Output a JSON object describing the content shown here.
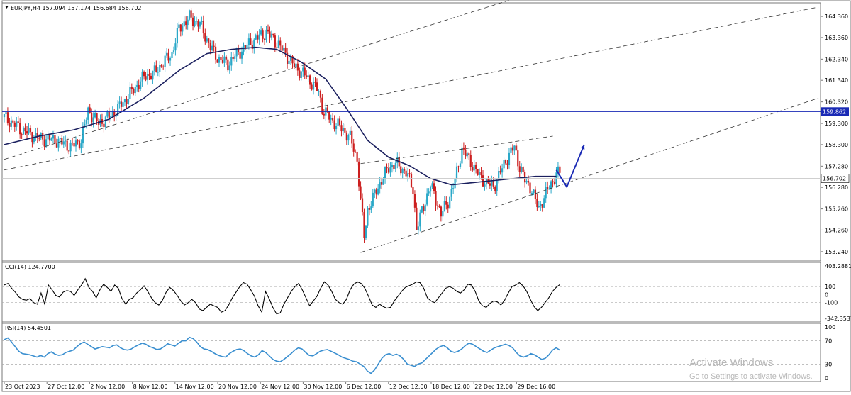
{
  "header": {
    "symbol": "EURJPY,H4",
    "ohlc": "157.094 157.174 156.684 156.702"
  },
  "chart_data": [
    {
      "type": "candlestick",
      "title": "EURJPY,H4",
      "y_ticks": [
        "164.360",
        "163.360",
        "162.340",
        "161.340",
        "160.320",
        "159.300",
        "158.300",
        "157.280",
        "156.280",
        "155.260",
        "154.260",
        "153.240"
      ],
      "ylim": [
        152.8,
        165.0
      ],
      "x_ticks": [
        "23 Oct 2023",
        "27 Oct 12:00",
        "2 Nov 12:00",
        "8 Nov 12:00",
        "14 Nov 12:00",
        "20 Nov 12:00",
        "24 Nov 12:00",
        "30 Nov 12:00",
        "6 Dec 12:00",
        "12 Dec 12:00",
        "18 Dec 12:00",
        "22 Dec 12:00",
        "29 Dec 16:00"
      ],
      "close_path": [
        [
          0,
          159.6
        ],
        [
          5,
          159.0
        ],
        [
          10,
          158.6
        ],
        [
          15,
          158.5
        ],
        [
          19,
          158.2
        ],
        [
          22,
          158.5
        ],
        [
          24,
          159.9
        ],
        [
          27,
          159.3
        ],
        [
          29,
          159.5
        ],
        [
          32,
          159.9
        ],
        [
          34,
          160.3
        ],
        [
          37,
          160.9
        ],
        [
          40,
          161.5
        ],
        [
          43,
          161.7
        ],
        [
          45,
          162.1
        ],
        [
          48,
          162.6
        ],
        [
          50,
          163.8
        ],
        [
          53,
          164.3
        ],
        [
          56,
          164.0
        ],
        [
          59,
          162.9
        ],
        [
          61,
          162.4
        ],
        [
          64,
          162.1
        ],
        [
          66,
          162.5
        ],
        [
          69,
          162.9
        ],
        [
          72,
          163.3
        ],
        [
          75,
          163.6
        ],
        [
          77,
          163.3
        ],
        [
          80,
          162.7
        ],
        [
          83,
          162.0
        ],
        [
          86,
          161.6
        ],
        [
          88,
          161.2
        ],
        [
          90,
          160.8
        ],
        [
          91,
          160.0
        ],
        [
          94,
          159.4
        ],
        [
          97,
          159.0
        ],
        [
          99,
          158.6
        ],
        [
          101,
          157.6
        ],
        [
          102,
          155.6
        ],
        [
          103,
          154.0
        ],
        [
          104,
          155.2
        ],
        [
          107,
          156.3
        ],
        [
          110,
          157.2
        ],
        [
          112,
          157.4
        ],
        [
          115,
          157.0
        ],
        [
          117,
          156.2
        ],
        [
          118,
          154.3
        ],
        [
          120,
          155.4
        ],
        [
          122,
          156.4
        ],
        [
          124,
          155.5
        ],
        [
          125,
          155.0
        ],
        [
          127,
          155.6
        ],
        [
          129,
          156.6
        ],
        [
          131,
          158.1
        ],
        [
          133,
          157.6
        ],
        [
          136,
          156.8
        ],
        [
          138,
          156.5
        ],
        [
          140,
          156.3
        ],
        [
          142,
          157.0
        ],
        [
          144,
          157.7
        ],
        [
          146,
          158.2
        ],
        [
          147,
          157.5
        ],
        [
          149,
          156.6
        ],
        [
          151,
          156.2
        ],
        [
          152,
          155.6
        ],
        [
          153,
          155.3
        ],
        [
          155,
          156.0
        ],
        [
          158,
          156.9
        ],
        [
          159,
          157.0
        ]
      ],
      "moving_average": [
        [
          0,
          158.3
        ],
        [
          10,
          158.7
        ],
        [
          20,
          159.0
        ],
        [
          30,
          159.5
        ],
        [
          40,
          160.5
        ],
        [
          50,
          161.8
        ],
        [
          58,
          162.6
        ],
        [
          65,
          162.8
        ],
        [
          72,
          162.9
        ],
        [
          78,
          162.8
        ],
        [
          85,
          162.2
        ],
        [
          92,
          161.4
        ],
        [
          98,
          160.0
        ],
        [
          104,
          158.5
        ],
        [
          110,
          157.7
        ],
        [
          116,
          157.3
        ],
        [
          122,
          156.7
        ],
        [
          128,
          156.4
        ],
        [
          134,
          156.5
        ],
        [
          140,
          156.6
        ],
        [
          146,
          156.7
        ],
        [
          152,
          156.8
        ],
        [
          158,
          156.8
        ]
      ],
      "horizontal_level": {
        "value": 159.862,
        "label": "159.862"
      },
      "current_price_label": "156.702",
      "channel_lines": [
        {
          "from": [
            0,
            157.6
          ],
          "to": [
            146,
            165.2
          ]
        },
        {
          "from": [
            0,
            157.1
          ],
          "to": [
            233,
            164.8
          ]
        },
        {
          "from": [
            102,
            153.2
          ],
          "to": [
            233,
            160.5
          ]
        },
        {
          "from": [
            102,
            157.4
          ],
          "to": [
            157,
            158.7
          ]
        }
      ],
      "projection_arrow": [
        [
          158,
          157.1
        ],
        [
          161,
          156.3
        ],
        [
          166,
          158.3
        ]
      ]
    },
    {
      "type": "line",
      "title": "CCI(14) 124.7700",
      "y_ticks": [
        "403.2881",
        "100",
        "0",
        "-100",
        "-342.3537"
      ],
      "ylim": [
        -342.3537,
        403.2881
      ],
      "dashed_levels": [
        100,
        -100
      ],
      "values": [
        120,
        140,
        80,
        30,
        -30,
        -60,
        -70,
        -50,
        -100,
        -120,
        20,
        -120,
        120,
        60,
        -10,
        -30,
        30,
        50,
        40,
        -10,
        60,
        120,
        200,
        90,
        40,
        -40,
        60,
        130,
        90,
        40,
        120,
        80,
        -50,
        -120,
        -60,
        -40,
        20,
        60,
        110,
        40,
        -40,
        -100,
        -130,
        -70,
        30,
        90,
        50,
        -10,
        -80,
        -130,
        -100,
        -60,
        -100,
        -180,
        -200,
        -160,
        -120,
        -140,
        -160,
        -220,
        -200,
        -130,
        -40,
        30,
        100,
        150,
        130,
        60,
        -20,
        -140,
        -220,
        40,
        -50,
        -160,
        -240,
        -230,
        -120,
        -40,
        40,
        100,
        140,
        60,
        -40,
        -140,
        -80,
        -20,
        80,
        160,
        120,
        40,
        -60,
        -100,
        -120,
        -60,
        60,
        130,
        160,
        140,
        80,
        -20,
        -130,
        -160,
        -120,
        -150,
        -170,
        -160,
        -80,
        -20,
        40,
        90,
        110,
        130,
        160,
        150,
        80,
        -40,
        -80,
        -100,
        -40,
        20,
        80,
        100,
        80,
        40,
        20,
        60,
        130,
        120,
        40,
        -80,
        -140,
        -160,
        -110,
        -80,
        -90,
        -130,
        -70,
        20,
        100,
        120,
        150,
        110,
        40,
        -60,
        -150,
        -200,
        -160,
        -100,
        -40,
        40,
        90,
        125
      ]
    },
    {
      "type": "line",
      "title": "RSI(14) 54.4501",
      "y_ticks": [
        "100",
        "70",
        "30",
        "0"
      ],
      "ylim": [
        0,
        100
      ],
      "dashed_levels": [
        70,
        30
      ],
      "values": [
        72,
        75,
        68,
        60,
        52,
        48,
        47,
        46,
        44,
        42,
        45,
        42,
        48,
        51,
        47,
        45,
        46,
        50,
        52,
        54,
        60,
        65,
        68,
        64,
        60,
        56,
        58,
        60,
        59,
        58,
        62,
        63,
        58,
        55,
        54,
        56,
        60,
        63,
        66,
        64,
        60,
        58,
        55,
        56,
        60,
        65,
        63,
        61,
        66,
        70,
        70,
        76,
        74,
        68,
        60,
        56,
        55,
        52,
        48,
        45,
        43,
        42,
        48,
        52,
        55,
        56,
        53,
        48,
        44,
        42,
        46,
        53,
        50,
        44,
        38,
        35,
        34,
        38,
        43,
        48,
        54,
        58,
        56,
        50,
        45,
        44,
        48,
        52,
        54,
        55,
        52,
        49,
        46,
        42,
        40,
        38,
        35,
        34,
        30,
        26,
        18,
        14,
        20,
        30,
        40,
        46,
        48,
        45,
        47,
        44,
        38,
        30,
        28,
        26,
        30,
        32,
        38,
        44,
        50,
        56,
        60,
        62,
        58,
        52,
        50,
        52,
        56,
        62,
        66,
        64,
        60,
        56,
        52,
        50,
        54,
        58,
        60,
        62,
        64,
        62,
        58,
        50,
        44,
        42,
        44,
        48,
        46,
        42,
        38,
        40,
        46,
        54,
        58,
        54
      ]
    }
  ],
  "watermark": {
    "title": "Activate Windows",
    "subtitle": "Go to Settings to activate Windows."
  },
  "colors": {
    "bull": "#2aa8c8",
    "bear": "#cc1f1f",
    "moving_average": "#1a1f5e",
    "level_line": "#1a2ab5",
    "level_label_bg": "#1a2ab5",
    "cci_line": "#000000",
    "rsi_line": "#3a8fd0",
    "arrow": "#1a2ab5",
    "border": "#777777",
    "channel": "#333333"
  }
}
